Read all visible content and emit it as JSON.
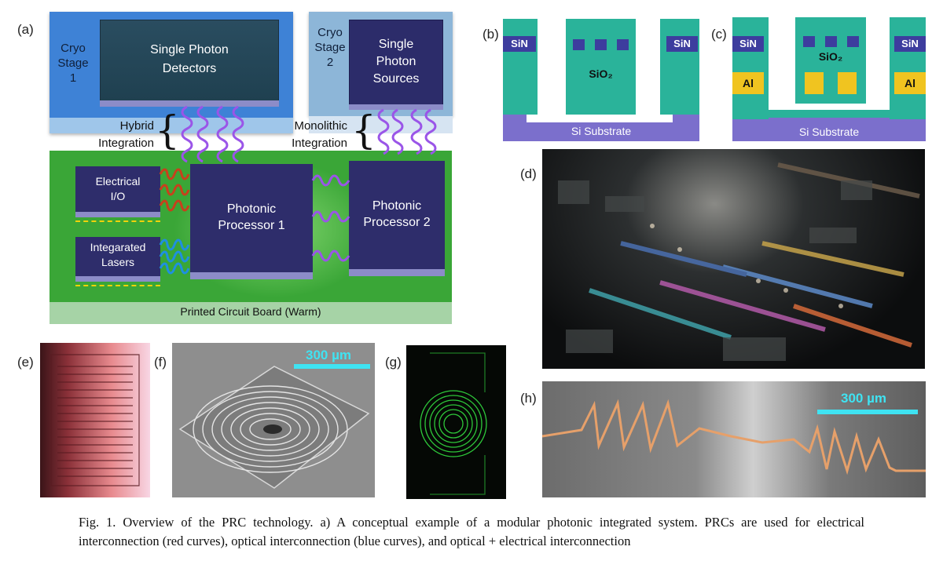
{
  "panel_labels": {
    "a": "(a)",
    "b": "(b)",
    "c": "(c)",
    "d": "(d)",
    "e": "(e)",
    "f": "(f)",
    "g": "(g)",
    "h": "(h)"
  },
  "panel_a": {
    "cryo_stage_1": "Cryo\nStage\n1",
    "cryo_stage_2": "Cryo\nStage\n2",
    "single_photon_detectors": "Single Photon\nDetectors",
    "single_photon_sources": "Single\nPhoton\nSources",
    "hybrid_integration": "Hybrid\nIntegration",
    "monolithic_integration": "Monolithic\nIntegration",
    "electrical_io": "Electrical\nI/O",
    "integrated_lasers": "Integarated\nLasers",
    "photonic_processor_1": "Photonic\nProcessor 1",
    "photonic_processor_2": "Photonic\nProcessor 2",
    "pcb": "Printed Circuit Board (Warm)",
    "colors": {
      "cryo1": "#3e82d6",
      "cryo2": "#9bc0e0",
      "pcb": "#3aa637",
      "pcb_base": "#a6d3a6",
      "chip": "#2e2d6b",
      "electrical": "#c8401c",
      "optical": "#1f8fe0",
      "hybrid": "#9a55e8"
    }
  },
  "panel_b": {
    "sin_left": "SiN",
    "sin_right": "SiN",
    "sio2": "SiO₂",
    "substrate": "Si Substrate"
  },
  "panel_c": {
    "sin_left": "SiN",
    "sin_right": "SiN",
    "sio2": "SiO₂",
    "al_left": "Al",
    "al_right": "Al",
    "substrate": "Si Substrate"
  },
  "panel_f": {
    "scale": "300 µm"
  },
  "panel_h": {
    "scale": "300 µm"
  },
  "caption": "Fig. 1. Overview of the PRC technology. a) A conceptual example of a modular photonic integrated system. PRCs are used for electrical interconnection (red curves), optical interconnection (blue curves), and optical + electrical interconnection"
}
